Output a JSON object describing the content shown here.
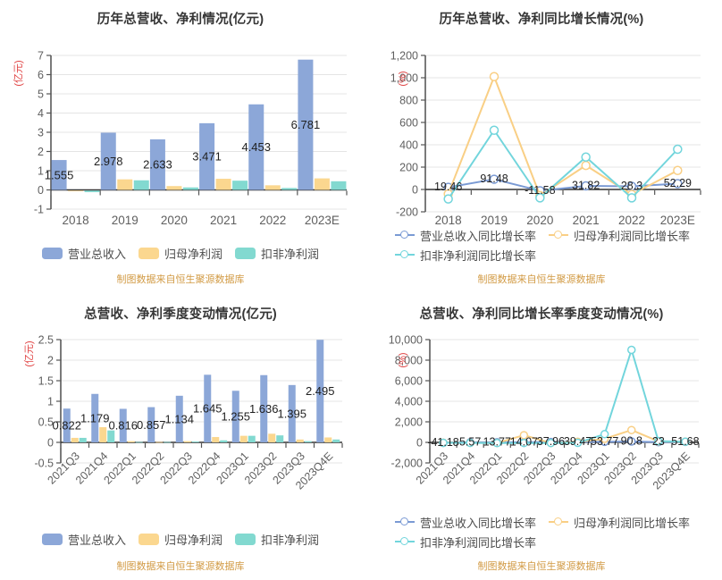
{
  "source_note": "制图数据来自恒生聚源数据库",
  "colors": {
    "bar_blue": "#8CA7D8",
    "bar_yellow": "#FBD78F",
    "bar_teal": "#82D9D0",
    "line_blue": "#7A9AD4",
    "line_yellow": "#F9CF85",
    "line_teal": "#72D5DC",
    "axis_unit_red": "#E04343",
    "source_orange": "#D29B45",
    "axis_line": "#333333",
    "grid_line": "#E4E4E4",
    "tick_text": "#5F5F5F",
    "value_label": "#1F1F1F"
  },
  "chart_data": [
    {
      "id": "annual-revenue-profit",
      "type": "bar",
      "title": "历年总营收、净利情况(亿元)",
      "y_axis_label": "(亿元)",
      "categories": [
        "2018",
        "2019",
        "2020",
        "2021",
        "2022",
        "2023E"
      ],
      "y_ticks": [
        7,
        6,
        5,
        4,
        3,
        2,
        1,
        0,
        -1
      ],
      "ylim": [
        -1,
        7
      ],
      "grid": true,
      "legend_position": "bottom-center",
      "series": [
        {
          "name": "营业总收入",
          "color": "#8CA7D8",
          "values": [
            1.555,
            2.978,
            2.633,
            3.471,
            4.453,
            6.781
          ],
          "labels": [
            "1.555",
            "2.978",
            "2.633",
            "3.471",
            "4.453",
            "6.781"
          ]
        },
        {
          "name": "归母净利润",
          "color": "#FBD78F",
          "values": [
            -0.03,
            0.55,
            0.2,
            0.58,
            0.24,
            0.6
          ]
        },
        {
          "name": "扣非净利润",
          "color": "#82D9D0",
          "values": [
            -0.08,
            0.5,
            0.13,
            0.48,
            0.1,
            0.45
          ]
        }
      ],
      "legend": [
        "营业总收入",
        "归母净利润",
        "扣非净利润"
      ]
    },
    {
      "id": "annual-growth",
      "type": "line",
      "title": "历年总营收、净利同比增长情况(%)",
      "y_axis_label": "(%)",
      "categories": [
        "2018",
        "2019",
        "2020",
        "2021",
        "2022",
        "2023E"
      ],
      "y_ticks": [
        1200,
        1000,
        800,
        600,
        400,
        200,
        0,
        -200
      ],
      "ylim": [
        -200,
        1200
      ],
      "grid": true,
      "legend_position": "bottom-left-two-rows",
      "series": [
        {
          "name": "营业总收入同比增长率",
          "color": "#7A9AD4",
          "values": [
            19.46,
            91.48,
            -11.58,
            31.82,
            28.3,
            52.29
          ],
          "labels": [
            "19.46",
            "91.48",
            "-11.58",
            "31.82",
            "28.3",
            "52.29"
          ]
        },
        {
          "name": "归母净利润同比增长率",
          "color": "#F9CF85",
          "values": [
            -40,
            1010,
            -55,
            215,
            -45,
            170
          ]
        },
        {
          "name": "扣非净利润同比增长率",
          "color": "#72D5DC",
          "values": [
            -85,
            530,
            -75,
            290,
            -75,
            360
          ]
        }
      ],
      "legend": [
        "营业总收入同比增长率",
        "归母净利润同比增长率",
        "扣非净利润同比增长率"
      ]
    },
    {
      "id": "quarterly-revenue-profit",
      "type": "bar",
      "title": "总营收、净利季度变动情况(亿元)",
      "y_axis_label": "(亿元)",
      "categories": [
        "2021Q3",
        "2021Q4",
        "2022Q1",
        "2022Q2",
        "2022Q3",
        "2022Q4",
        "2023Q1",
        "2023Q2",
        "2023Q3",
        "2023Q4E"
      ],
      "y_ticks": [
        2.5,
        2,
        1.5,
        1,
        0.5,
        0,
        -0.5
      ],
      "ylim": [
        -0.5,
        2.5
      ],
      "grid": true,
      "legend_position": "bottom-center",
      "series": [
        {
          "name": "营业总收入",
          "color": "#8CA7D8",
          "values": [
            0.822,
            1.179,
            0.816,
            0.857,
            1.134,
            1.645,
            1.255,
            1.636,
            1.395,
            2.495
          ],
          "labels": [
            "0.822",
            "1.179",
            "0.816",
            "0.857",
            "1.134",
            "1.645",
            "1.255",
            "1.636",
            "1.395",
            "2.495"
          ]
        },
        {
          "name": "归母净利润",
          "color": "#FBD78F",
          "values": [
            0.11,
            0.37,
            0.03,
            0.01,
            0.03,
            0.13,
            0.16,
            0.21,
            0.07,
            0.12
          ]
        },
        {
          "name": "扣非净利润",
          "color": "#82D9D0",
          "values": [
            0.11,
            0.29,
            0.01,
            0.01,
            0.02,
            0.05,
            0.16,
            0.17,
            0.03,
            0.07
          ]
        }
      ],
      "legend": [
        "营业总收入",
        "归母净利润",
        "扣非净利润"
      ]
    },
    {
      "id": "quarterly-growth",
      "type": "line",
      "title": "总营收、净利同比增长率季度变动情况(%)",
      "y_axis_label": "(%)",
      "categories": [
        "2021Q3",
        "2021Q4",
        "2022Q1",
        "2022Q2",
        "2022Q3",
        "2022Q4",
        "2023Q1",
        "2023Q2",
        "2023Q3",
        "2023Q4E"
      ],
      "y_ticks": [
        10000,
        8000,
        6000,
        4000,
        2000,
        0,
        -2000
      ],
      "ylim": [
        -2000,
        10000
      ],
      "grid": true,
      "legend_position": "bottom-left-two-rows",
      "series": [
        {
          "name": "营业总收入同比增长率",
          "color": "#7A9AD4",
          "values": [
            -41.18,
            5.57,
            13.77,
            14.07,
            37.96,
            39.47,
            53.77,
            90.8,
            23,
            51.68
          ],
          "labels": [
            "-41.18",
            "5.57",
            "13.77",
            "14.07",
            "37.96",
            "39.47",
            "53.77",
            "90.8",
            "23",
            "51.68"
          ]
        },
        {
          "name": "归母净利润同比增长率",
          "color": "#F9CF85",
          "values": [
            -30,
            -40,
            -60,
            700,
            -60,
            50,
            350,
            1200,
            100,
            60
          ]
        },
        {
          "name": "扣非净利润同比增长率",
          "color": "#72D5DC",
          "values": [
            -40,
            -50,
            -70,
            -60,
            -60,
            -40,
            800,
            9000,
            120,
            60
          ]
        }
      ],
      "legend": [
        "营业总收入同比增长率",
        "归母净利润同比增长率",
        "扣非净利润同比增长率"
      ]
    }
  ]
}
